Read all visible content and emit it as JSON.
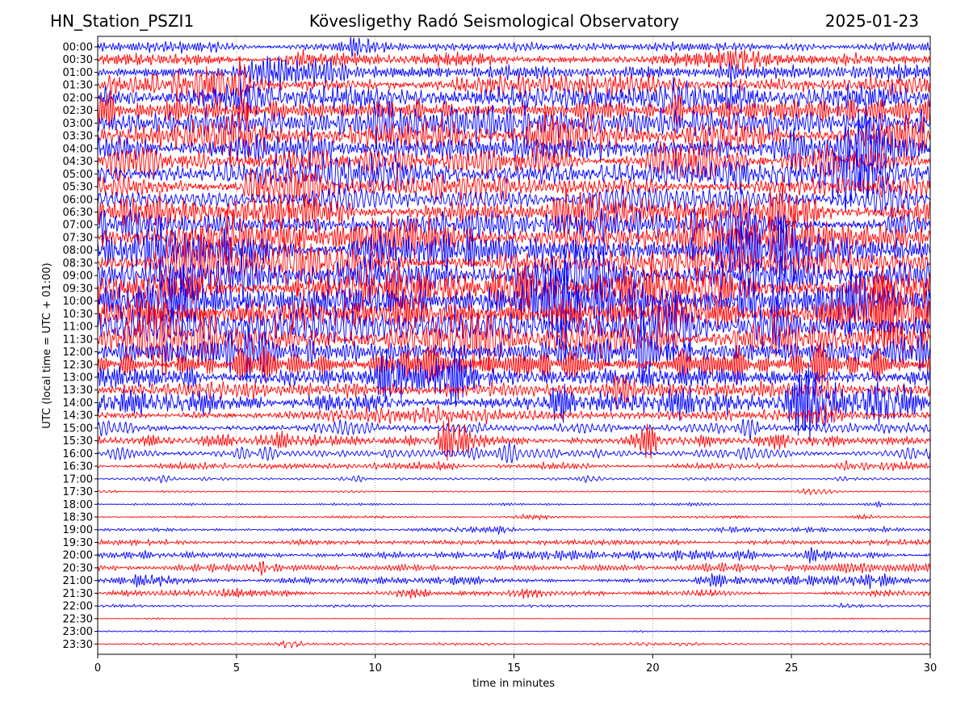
{
  "header": {
    "station": "HN_Station_PSZI1",
    "observatory": "Kövesligethy Radó Seismological Observatory",
    "date": "2025-01-23"
  },
  "chart_data": {
    "type": "line",
    "title": "Kövesligethy Radó Seismological Observatory",
    "xlabel": "time in minutes",
    "ylabel": "UTC (local time = UTC + 01:00)",
    "xlim": [
      0,
      30
    ],
    "xticks": [
      0,
      5,
      10,
      15,
      20,
      25,
      30
    ],
    "grid": "vertical dotted lines at x ticks",
    "trace_colors": [
      "#0000ff",
      "#ff0000"
    ],
    "traces": [
      {
        "label": "00:00",
        "amplitude": 1.0,
        "color": "#0000ff"
      },
      {
        "label": "00:30",
        "amplitude": 1.4,
        "color": "#ff0000"
      },
      {
        "label": "01:00",
        "amplitude": 1.8,
        "color": "#0000ff"
      },
      {
        "label": "01:30",
        "amplitude": 2.2,
        "color": "#ff0000"
      },
      {
        "label": "02:00",
        "amplitude": 2.6,
        "color": "#0000ff"
      },
      {
        "label": "02:30",
        "amplitude": 2.8,
        "color": "#ff0000"
      },
      {
        "label": "03:00",
        "amplitude": 3.0,
        "color": "#0000ff"
      },
      {
        "label": "03:30",
        "amplitude": 3.0,
        "color": "#ff0000"
      },
      {
        "label": "04:00",
        "amplitude": 2.9,
        "color": "#0000ff"
      },
      {
        "label": "04:30",
        "amplitude": 2.8,
        "color": "#ff0000"
      },
      {
        "label": "05:00",
        "amplitude": 2.7,
        "color": "#0000ff"
      },
      {
        "label": "05:30",
        "amplitude": 2.6,
        "color": "#ff0000"
      },
      {
        "label": "06:00",
        "amplitude": 2.6,
        "color": "#0000ff"
      },
      {
        "label": "06:30",
        "amplitude": 2.7,
        "color": "#ff0000"
      },
      {
        "label": "07:00",
        "amplitude": 2.8,
        "color": "#0000ff"
      },
      {
        "label": "07:30",
        "amplitude": 3.0,
        "color": "#ff0000"
      },
      {
        "label": "08:00",
        "amplitude": 3.2,
        "color": "#0000ff"
      },
      {
        "label": "08:30",
        "amplitude": 3.3,
        "color": "#ff0000"
      },
      {
        "label": "09:00",
        "amplitude": 3.4,
        "color": "#0000ff"
      },
      {
        "label": "09:30",
        "amplitude": 3.5,
        "color": "#ff0000"
      },
      {
        "label": "10:00",
        "amplitude": 3.5,
        "color": "#0000ff"
      },
      {
        "label": "10:30",
        "amplitude": 3.5,
        "color": "#ff0000"
      },
      {
        "label": "11:00",
        "amplitude": 3.4,
        "color": "#0000ff"
      },
      {
        "label": "11:30",
        "amplitude": 3.3,
        "color": "#ff0000"
      },
      {
        "label": "12:00",
        "amplitude": 3.1,
        "color": "#0000ff"
      },
      {
        "label": "12:30",
        "amplitude": 2.9,
        "color": "#ff0000"
      },
      {
        "label": "13:00",
        "amplitude": 2.6,
        "color": "#0000ff"
      },
      {
        "label": "13:30",
        "amplitude": 2.3,
        "color": "#ff0000"
      },
      {
        "label": "14:00",
        "amplitude": 2.0,
        "color": "#0000ff"
      },
      {
        "label": "14:30",
        "amplitude": 1.7,
        "color": "#ff0000"
      },
      {
        "label": "15:00",
        "amplitude": 1.4,
        "color": "#0000ff"
      },
      {
        "label": "15:30",
        "amplitude": 1.2,
        "color": "#ff0000"
      },
      {
        "label": "16:00",
        "amplitude": 1.0,
        "color": "#0000ff"
      },
      {
        "label": "16:30",
        "amplitude": 0.75,
        "color": "#ff0000"
      },
      {
        "label": "17:00",
        "amplitude": 0.3,
        "color": "#0000ff"
      },
      {
        "label": "17:30",
        "amplitude": 0.2,
        "color": "#ff0000"
      },
      {
        "label": "18:00",
        "amplitude": 0.2,
        "color": "#0000ff"
      },
      {
        "label": "18:30",
        "amplitude": 0.25,
        "color": "#ff0000"
      },
      {
        "label": "19:00",
        "amplitude": 0.35,
        "color": "#0000ff"
      },
      {
        "label": "19:30",
        "amplitude": 0.6,
        "color": "#ff0000"
      },
      {
        "label": "20:00",
        "amplitude": 0.9,
        "color": "#0000ff"
      },
      {
        "label": "20:30",
        "amplitude": 0.9,
        "color": "#ff0000"
      },
      {
        "label": "21:00",
        "amplitude": 0.75,
        "color": "#0000ff"
      },
      {
        "label": "21:30",
        "amplitude": 0.6,
        "color": "#ff0000"
      },
      {
        "label": "22:00",
        "amplitude": 0.3,
        "color": "#0000ff"
      },
      {
        "label": "22:30",
        "amplitude": 0.12,
        "color": "#ff0000"
      },
      {
        "label": "23:00",
        "amplitude": 0.15,
        "color": "#0000ff"
      },
      {
        "label": "23:30",
        "amplitude": 0.3,
        "color": "#ff0000"
      }
    ]
  }
}
